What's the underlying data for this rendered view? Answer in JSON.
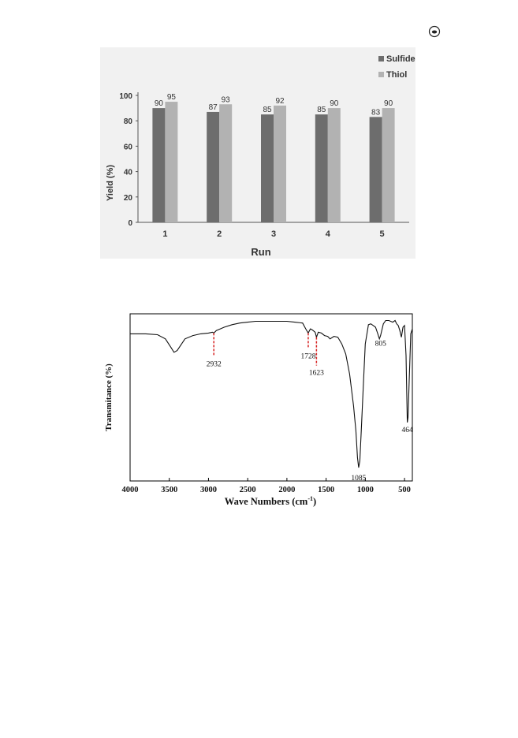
{
  "corner_icon": "circled-dot-icon",
  "chart_data": [
    {
      "type": "bar",
      "categories": [
        "1",
        "2",
        "3",
        "4",
        "5"
      ],
      "series": [
        {
          "name": "Sulfide",
          "values": [
            90,
            87,
            85,
            85,
            83
          ],
          "color": "#6d6d6d"
        },
        {
          "name": "Thiol",
          "values": [
            95,
            93,
            92,
            90,
            90
          ],
          "color": "#b2b2b2"
        }
      ],
      "data_labels": {
        "Sulfide": [
          "90",
          "87",
          "85",
          "85",
          "83"
        ],
        "Thiol": [
          "95",
          "93",
          "92",
          "90",
          "90"
        ]
      },
      "xlabel": "Run",
      "ylabel": "Yield (%)",
      "ylim": [
        0,
        100
      ],
      "yticks": [
        "0",
        "20",
        "40",
        "60",
        "80",
        "100"
      ],
      "grid": false,
      "legend": "top-right",
      "background": "#f0f0f0"
    },
    {
      "type": "line",
      "xlabel": "Wave Numbers (cm⁻¹)",
      "xlabel_main": "Wave Numbers (cm",
      "xlabel_sup": "-1",
      "xlabel_end": ")",
      "ylabel": "Transmitance (%)",
      "xlim": [
        4000,
        400
      ],
      "xticks": [
        "4000",
        "3500",
        "3000",
        "2500",
        "2000",
        "1500",
        "1000",
        "500"
      ],
      "ylim": [
        0,
        100
      ],
      "series": [
        {
          "x": [
            4000,
            3800,
            3650,
            3550,
            3480,
            3440,
            3400,
            3300,
            3200,
            3100,
            3000,
            2950,
            2932,
            2900,
            2850,
            2800,
            2700,
            2600,
            2500,
            2400,
            2300,
            2200,
            2100,
            2000,
            1900,
            1800,
            1760,
            1728,
            1700,
            1680,
            1640,
            1623,
            1600,
            1560,
            1520,
            1480,
            1450,
            1400,
            1350,
            1300,
            1250,
            1200,
            1150,
            1120,
            1100,
            1085,
            1070,
            1050,
            1020,
            1000,
            960,
            930,
            900,
            870,
            840,
            820,
            805,
            790,
            770,
            740,
            700,
            650,
            620,
            600,
            580,
            560,
            540,
            520,
            500,
            480,
            470,
            464,
            455,
            440,
            420,
            400
          ],
          "y": [
            88,
            88,
            87.5,
            85,
            80,
            77,
            78,
            85,
            87,
            88,
            88.5,
            89,
            88.5,
            90,
            91,
            92,
            93.5,
            94.5,
            95,
            95.5,
            95.5,
            95.5,
            95.5,
            95.5,
            95,
            94.5,
            91,
            88.5,
            91,
            90.5,
            89,
            86,
            89,
            88.5,
            87,
            86.5,
            85,
            86.5,
            86,
            82,
            76,
            64,
            45,
            30,
            14,
            8,
            12,
            32,
            62,
            82,
            93.5,
            94,
            93,
            92,
            88,
            85,
            87,
            90,
            94,
            96,
            96,
            95,
            96,
            94,
            93,
            90,
            86,
            92,
            93,
            75,
            50,
            35,
            38,
            60,
            88,
            91
          ]
        }
      ],
      "annotations": [
        {
          "label": "2932",
          "x": 2932
        },
        {
          "label": "1728",
          "x": 1728
        },
        {
          "label": "1623",
          "x": 1623
        },
        {
          "label": "1085",
          "x": 1085
        },
        {
          "label": "805",
          "x": 805
        },
        {
          "label": "464",
          "x": 464
        }
      ],
      "marker_color": "#d62020",
      "grid": false
    }
  ]
}
